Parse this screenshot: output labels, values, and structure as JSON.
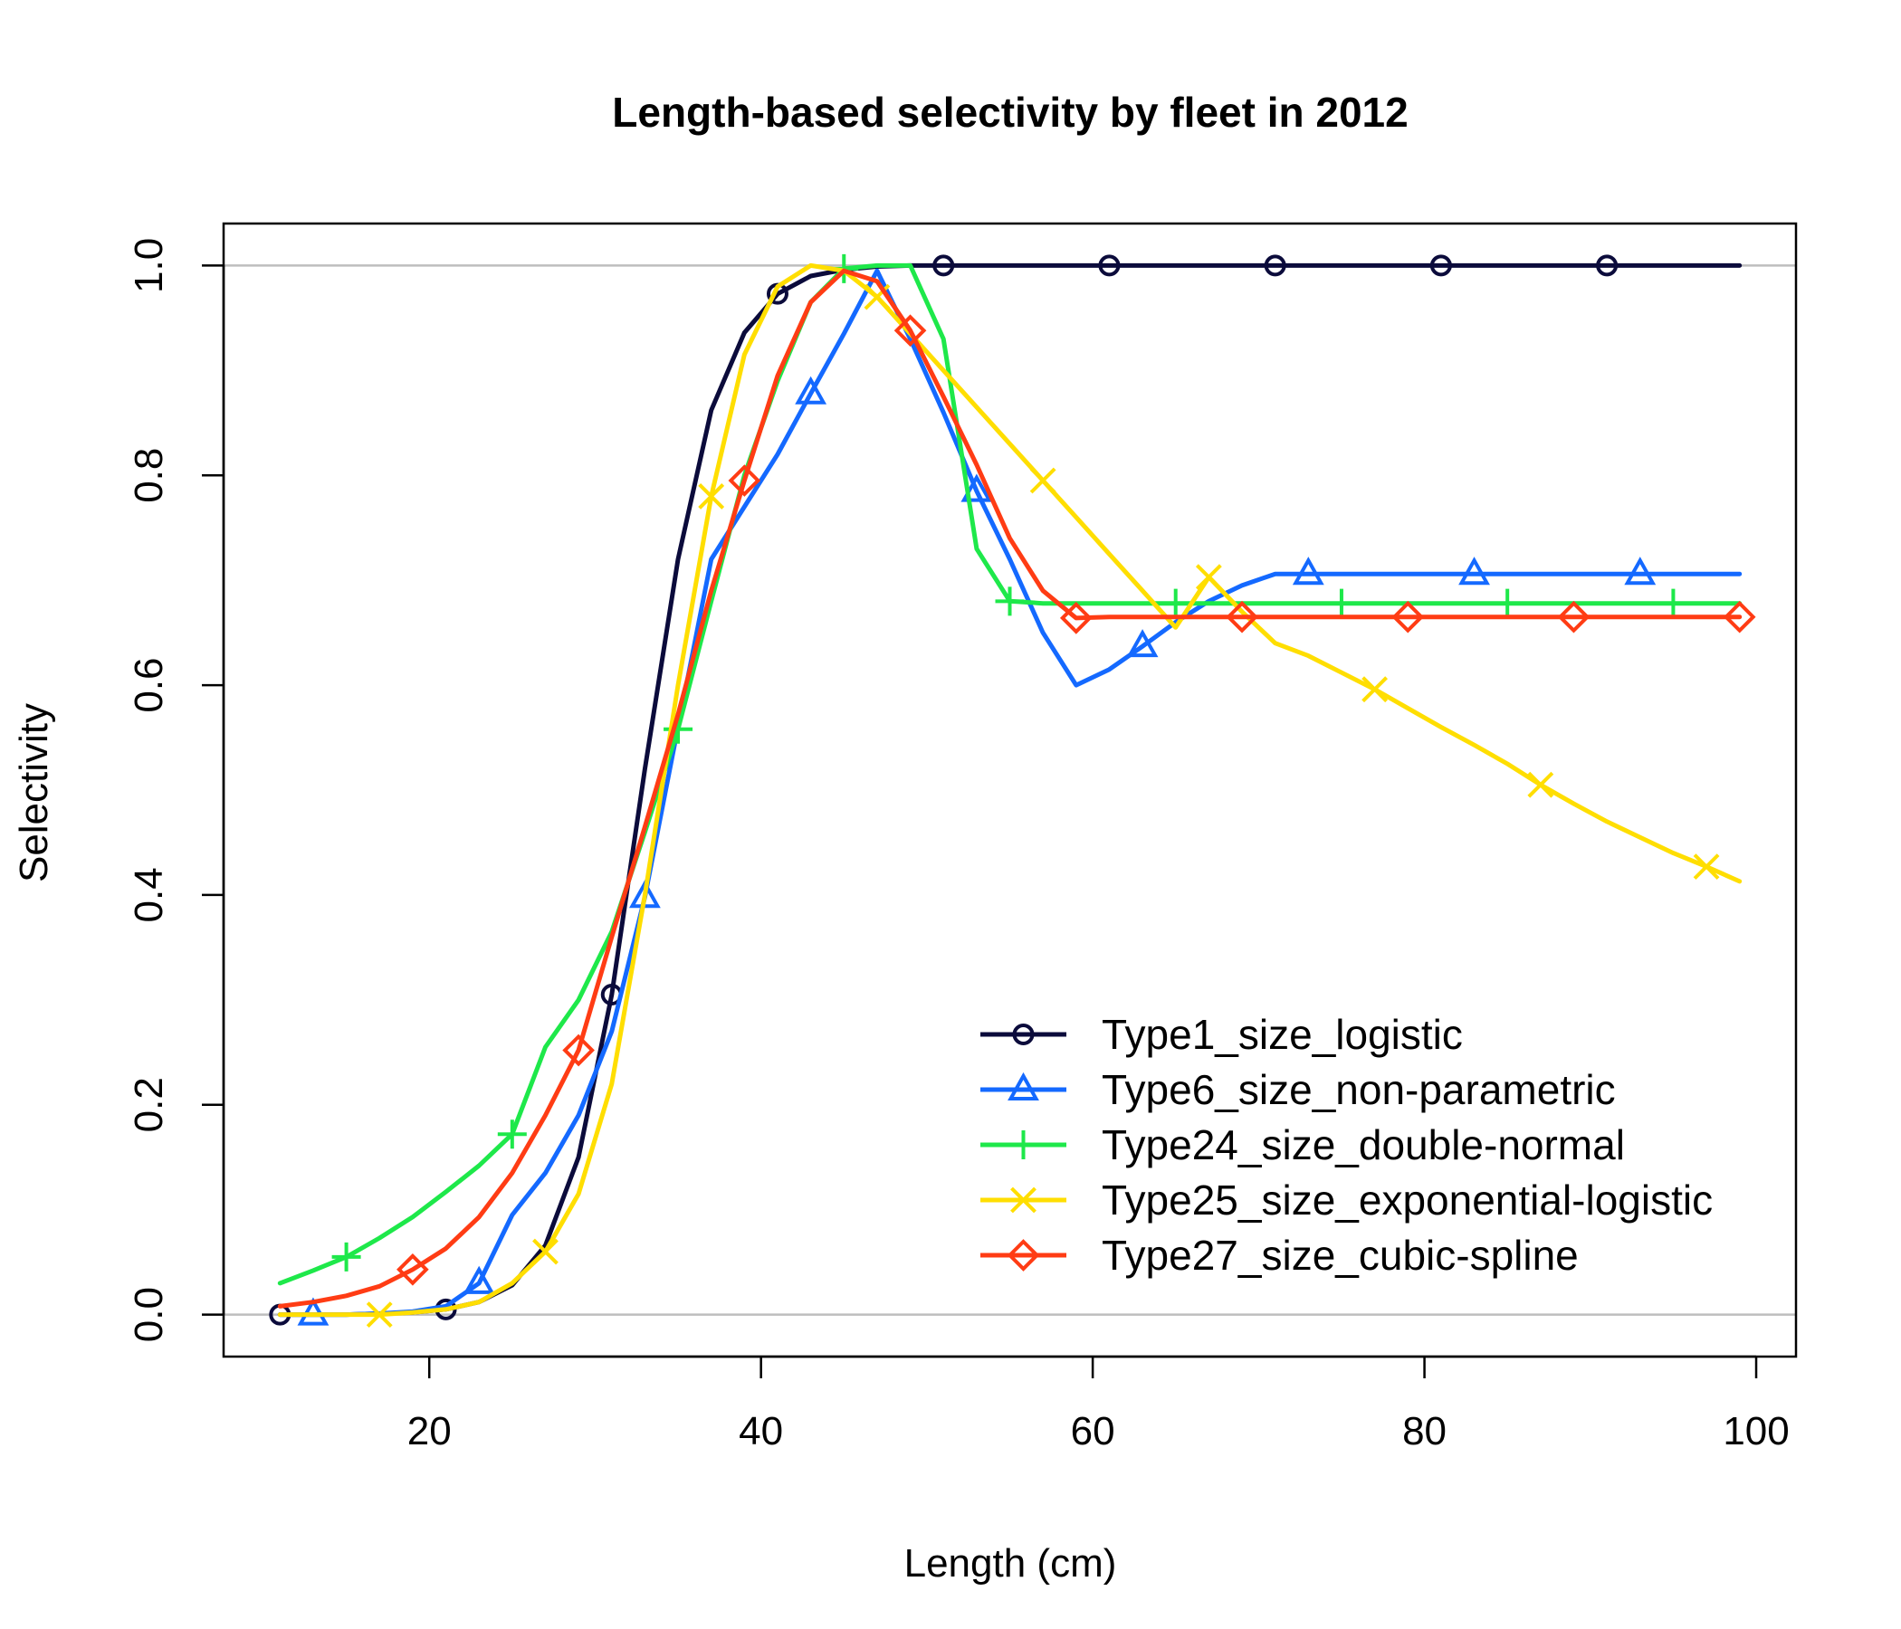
{
  "chart_data": {
    "type": "line",
    "title": "Length-based selectivity by fleet in 2012",
    "xlabel": "Length (cm)",
    "ylabel": "Selectivity",
    "xlim": [
      7.6,
      102.4
    ],
    "ylim": [
      -0.04,
      1.04
    ],
    "xticks": [
      20,
      40,
      60,
      80,
      100
    ],
    "yticks": [
      0.0,
      0.2,
      0.4,
      0.6,
      0.8,
      1.0
    ],
    "xtick_labels": [
      "20",
      "40",
      "60",
      "80",
      "100"
    ],
    "ytick_labels": [
      "0.0",
      "0.2",
      "0.4",
      "0.6",
      "0.8",
      "1.0"
    ],
    "reference_lines": [
      0,
      1
    ],
    "legend_position": "bottom-right",
    "x": [
      11,
      13,
      15,
      17,
      19,
      21,
      23,
      25,
      27,
      29,
      31,
      33,
      35,
      37,
      39,
      41,
      43,
      45,
      47,
      49,
      51,
      53,
      55,
      57,
      59,
      61,
      63,
      65,
      67,
      69,
      71,
      73,
      75,
      77,
      79,
      81,
      83,
      85,
      87,
      89,
      91,
      93,
      95,
      97,
      99
    ],
    "series": [
      {
        "name": "Type1_size_logistic",
        "color": "#0b0b3b",
        "marker": "circle",
        "marker_x": [
          11,
          21,
          31,
          41,
          51,
          61,
          71,
          81,
          91
        ],
        "values": [
          0.0,
          0.0,
          0.0,
          0.001,
          0.002,
          0.005,
          0.012,
          0.028,
          0.066,
          0.15,
          0.305,
          0.52,
          0.72,
          0.862,
          0.936,
          0.973,
          0.99,
          0.996,
          0.999,
          1.0,
          1.0,
          1.0,
          1.0,
          1.0,
          1.0,
          1.0,
          1.0,
          1.0,
          1.0,
          1.0,
          1.0,
          1.0,
          1.0,
          1.0,
          1.0,
          1.0,
          1.0,
          1.0,
          1.0,
          1.0,
          1.0,
          1.0,
          1.0,
          1.0,
          1.0
        ]
      },
      {
        "name": "Type6_size_non-parametric",
        "color": "#1469ff",
        "marker": "triangle",
        "marker_x": [
          13,
          23,
          33,
          43,
          53,
          63,
          73,
          83,
          93
        ],
        "values": [
          0.0,
          0.0,
          0.0,
          0.001,
          0.003,
          0.008,
          0.03,
          0.095,
          0.135,
          0.19,
          0.27,
          0.398,
          0.56,
          0.72,
          0.77,
          0.82,
          0.878,
          0.935,
          0.995,
          0.93,
          0.86,
          0.785,
          0.72,
          0.65,
          0.6,
          0.615,
          0.637,
          0.66,
          0.68,
          0.695,
          0.706,
          0.706,
          0.706,
          0.706,
          0.706,
          0.706,
          0.706,
          0.706,
          0.706,
          0.706,
          0.706,
          0.706,
          0.706,
          0.706,
          0.706
        ]
      },
      {
        "name": "Type24_size_double-normal",
        "color": "#1ee84a",
        "marker": "plus",
        "marker_x": [
          15,
          25,
          35,
          45,
          55,
          65,
          75,
          85,
          95
        ],
        "values": [
          0.03,
          0.042,
          0.055,
          0.073,
          0.093,
          0.117,
          0.142,
          0.172,
          0.255,
          0.3,
          0.365,
          0.46,
          0.558,
          0.68,
          0.8,
          0.89,
          0.965,
          0.997,
          1.0,
          1.0,
          0.93,
          0.73,
          0.68,
          0.678,
          0.678,
          0.678,
          0.678,
          0.678,
          0.678,
          0.678,
          0.678,
          0.678,
          0.678,
          0.678,
          0.678,
          0.678,
          0.678,
          0.678,
          0.678,
          0.678,
          0.678,
          0.678,
          0.678,
          0.678,
          0.678
        ]
      },
      {
        "name": "Type25_size_exponential-logistic",
        "color": "#ffde00",
        "marker": "cross",
        "marker_x": [
          17,
          27,
          37,
          47,
          57,
          67,
          77,
          87,
          97
        ],
        "values": [
          0.0,
          0.0,
          0.0,
          0.0,
          0.002,
          0.005,
          0.012,
          0.03,
          0.06,
          0.115,
          0.22,
          0.4,
          0.6,
          0.78,
          0.915,
          0.98,
          1.0,
          0.995,
          0.97,
          0.935,
          0.9,
          0.865,
          0.83,
          0.795,
          0.76,
          0.725,
          0.69,
          0.655,
          0.703,
          0.67,
          0.64,
          0.628,
          0.612,
          0.596,
          0.578,
          0.56,
          0.543,
          0.525,
          0.505,
          0.487,
          0.47,
          0.455,
          0.44,
          0.427,
          0.413
        ]
      },
      {
        "name": "Type27_size_cubic-spline",
        "color": "#ff3c14",
        "marker": "diamond",
        "marker_x": [
          19,
          29,
          39,
          49,
          59,
          69,
          79,
          89,
          99
        ],
        "values": [
          0.008,
          0.012,
          0.018,
          0.027,
          0.043,
          0.063,
          0.093,
          0.135,
          0.19,
          0.252,
          0.36,
          0.465,
          0.572,
          0.69,
          0.795,
          0.895,
          0.965,
          0.995,
          0.985,
          0.938,
          0.875,
          0.81,
          0.74,
          0.69,
          0.664,
          0.665,
          0.665,
          0.665,
          0.665,
          0.665,
          0.665,
          0.665,
          0.665,
          0.665,
          0.665,
          0.665,
          0.665,
          0.665,
          0.665,
          0.665,
          0.665,
          0.665,
          0.665,
          0.665,
          0.665
        ]
      }
    ]
  }
}
